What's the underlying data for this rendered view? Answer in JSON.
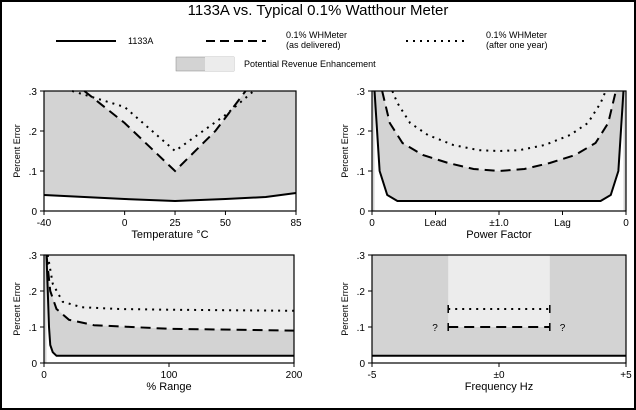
{
  "title": "1133A vs. Typical 0.1% Watthour Meter",
  "legend": {
    "solid": "1133A",
    "dash_line1": "0.1% WHMeter",
    "dash_line2": "(as delivered)",
    "dot_line1": "0.1% WHMeter",
    "dot_line2": "(after one year)",
    "band": "Potential Revenue Enhancement"
  },
  "colors": {
    "band": "#d3d3d3",
    "light_band": "#ececec",
    "line": "#000000",
    "background": "#ffffff"
  },
  "chart_data": [
    {
      "type": "line",
      "xlabel": "Temperature °C",
      "ylabel": "Percent Error",
      "xlim": [
        -40,
        85
      ],
      "ylim": [
        0,
        0.3
      ],
      "x_ticks": [
        "-40",
        "0",
        "25",
        "50",
        "85"
      ],
      "y_ticks": [
        "0",
        ".1",
        ".2",
        ".3"
      ],
      "series": [
        {
          "name": "1133A",
          "style": "solid",
          "x": [
            -40,
            -20,
            0,
            25,
            50,
            70,
            85
          ],
          "y": [
            0.04,
            0.035,
            0.03,
            0.025,
            0.03,
            0.035,
            0.045
          ]
        },
        {
          "name": "0.1% WHMeter (as delivered)",
          "style": "dash",
          "x": [
            -20,
            0,
            25,
            45,
            60
          ],
          "y": [
            0.3,
            0.22,
            0.1,
            0.2,
            0.3
          ]
        },
        {
          "name": "0.1% WHMeter (after one year)",
          "style": "dot",
          "x": [
            -26,
            0,
            25,
            50,
            64
          ],
          "y": [
            0.3,
            0.26,
            0.15,
            0.24,
            0.3
          ]
        }
      ]
    },
    {
      "type": "line",
      "xlabel": "Power Factor",
      "ylabel": "Percent Error",
      "xlim": [
        0,
        1
      ],
      "ylim": [
        0,
        0.3
      ],
      "x_ticks": [
        "0",
        "Lead",
        "±1.0",
        "Lag",
        "0"
      ],
      "y_ticks": [
        "0",
        ".1",
        ".2",
        ".3"
      ],
      "series": [
        {
          "name": "1133A",
          "style": "solid",
          "x": [
            0.01,
            0.03,
            0.06,
            0.1,
            0.2,
            0.5,
            0.8,
            0.9,
            0.94,
            0.97,
            0.99
          ],
          "y": [
            0.3,
            0.1,
            0.04,
            0.025,
            0.025,
            0.025,
            0.025,
            0.025,
            0.04,
            0.1,
            0.3
          ]
        },
        {
          "name": "0.1% WHMeter (as delivered)",
          "style": "dash",
          "x": [
            0.04,
            0.07,
            0.12,
            0.2,
            0.3,
            0.4,
            0.5,
            0.6,
            0.7,
            0.8,
            0.88,
            0.93,
            0.96
          ],
          "y": [
            0.3,
            0.22,
            0.17,
            0.14,
            0.12,
            0.105,
            0.1,
            0.105,
            0.12,
            0.14,
            0.17,
            0.22,
            0.3
          ]
        },
        {
          "name": "0.1% WHMeter (after one year)",
          "style": "dot",
          "x": [
            0.08,
            0.1,
            0.15,
            0.22,
            0.32,
            0.42,
            0.5,
            0.58,
            0.68,
            0.78,
            0.85,
            0.9,
            0.92
          ],
          "y": [
            0.3,
            0.27,
            0.22,
            0.19,
            0.165,
            0.152,
            0.15,
            0.152,
            0.165,
            0.19,
            0.22,
            0.27,
            0.3
          ]
        }
      ]
    },
    {
      "type": "line",
      "xlabel": "% Range",
      "ylabel": "Percent Error",
      "xlim": [
        0,
        200
      ],
      "ylim": [
        0,
        0.3
      ],
      "x_ticks": [
        "0",
        "100",
        "200"
      ],
      "y_ticks": [
        "0",
        ".1",
        ".2",
        ".3"
      ],
      "series": [
        {
          "name": "1133A",
          "style": "solid",
          "x": [
            2,
            3,
            4,
            5,
            7,
            10,
            200
          ],
          "y": [
            0.3,
            0.2,
            0.1,
            0.05,
            0.03,
            0.02,
            0.02
          ]
        },
        {
          "name": "0.1% WHMeter (as delivered)",
          "style": "dash",
          "x": [
            2,
            5,
            10,
            20,
            40,
            70,
            100,
            200
          ],
          "y": [
            0.3,
            0.2,
            0.15,
            0.12,
            0.105,
            0.1,
            0.095,
            0.09
          ]
        },
        {
          "name": "0.1% WHMeter (after one year)",
          "style": "dot",
          "x": [
            3,
            7,
            15,
            30,
            60,
            100,
            200
          ],
          "y": [
            0.3,
            0.22,
            0.17,
            0.155,
            0.15,
            0.148,
            0.145
          ]
        }
      ]
    },
    {
      "type": "line",
      "xlabel": "Frequency Hz",
      "ylabel": "Percent Error",
      "xlim": [
        -5,
        5
      ],
      "ylim": [
        0,
        0.3
      ],
      "x_ticks": [
        "-5",
        "±0",
        "+5"
      ],
      "y_ticks": [
        "0",
        ".1",
        ".2",
        ".3"
      ],
      "annotations": [
        "?",
        "?"
      ],
      "series": [
        {
          "name": "1133A",
          "style": "solid",
          "x": [
            -5,
            5
          ],
          "y": [
            0.02,
            0.02
          ]
        },
        {
          "name": "0.1% WHMeter (as delivered)",
          "style": "dash",
          "x": [
            -2,
            2
          ],
          "y": [
            0.1,
            0.1
          ]
        },
        {
          "name": "0.1% WHMeter (after one year)",
          "style": "dot",
          "x": [
            -2,
            2
          ],
          "y": [
            0.15,
            0.15
          ]
        }
      ]
    }
  ]
}
